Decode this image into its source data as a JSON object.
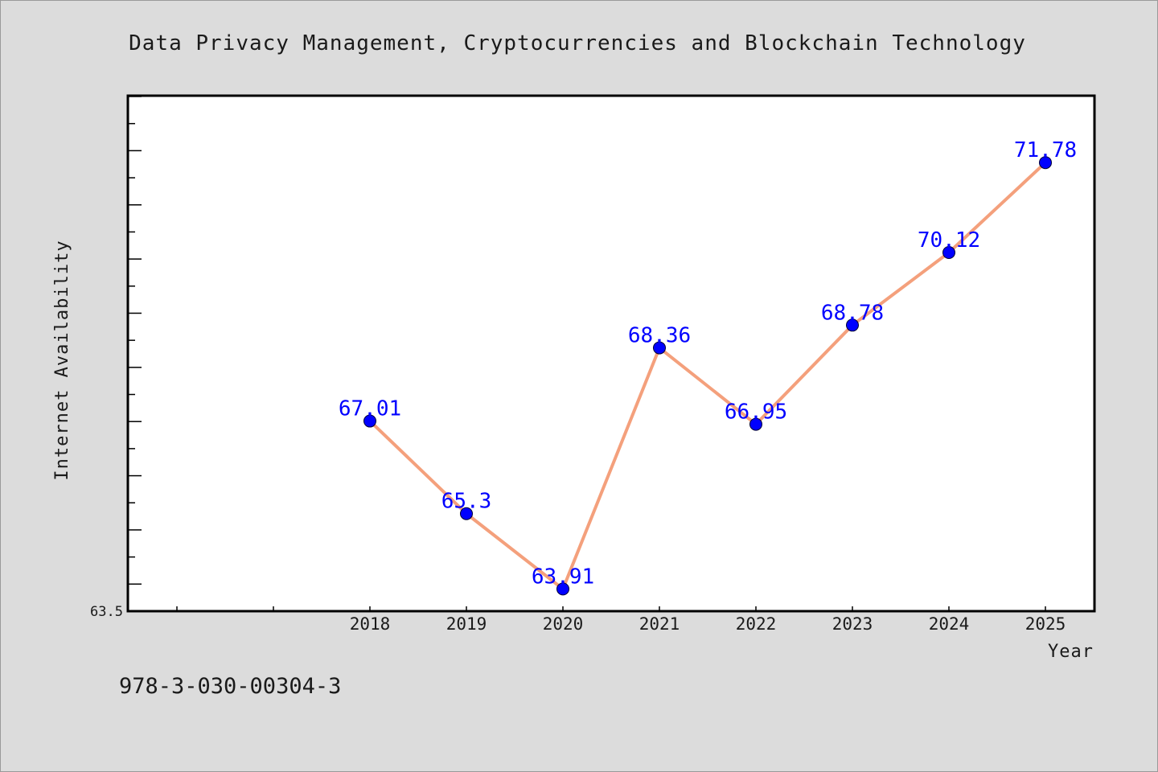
{
  "chart_data": {
    "type": "line",
    "title": "Data Privacy Management, Cryptocurrencies and Blockchain Technology",
    "xlabel": "Year",
    "ylabel": "Internet Availability",
    "x": [
      "2018",
      "2019",
      "2020",
      "2021",
      "2022",
      "2023",
      "2024",
      "2025"
    ],
    "series": [
      {
        "values": [
          67.01,
          65.3,
          63.91,
          68.36,
          66.95,
          68.78,
          70.12,
          71.78
        ],
        "labels": [
          "67.01",
          "65.3",
          "63.91",
          "68.36",
          "66.95",
          "68.78",
          "70.12",
          "71.78"
        ]
      }
    ],
    "ylim": [
      63.5,
      73.0
    ],
    "ytick_labels": [
      "63.5"
    ],
    "grid": false,
    "legend": "none",
    "colors": {
      "line": "#f4a07c",
      "marker": "#0000ff",
      "data_label": "#0000ff",
      "plot_background": "#ffffff",
      "figure_background": "#dcdcdc"
    }
  },
  "footer": {
    "code": "978-3-030-00304-3"
  }
}
